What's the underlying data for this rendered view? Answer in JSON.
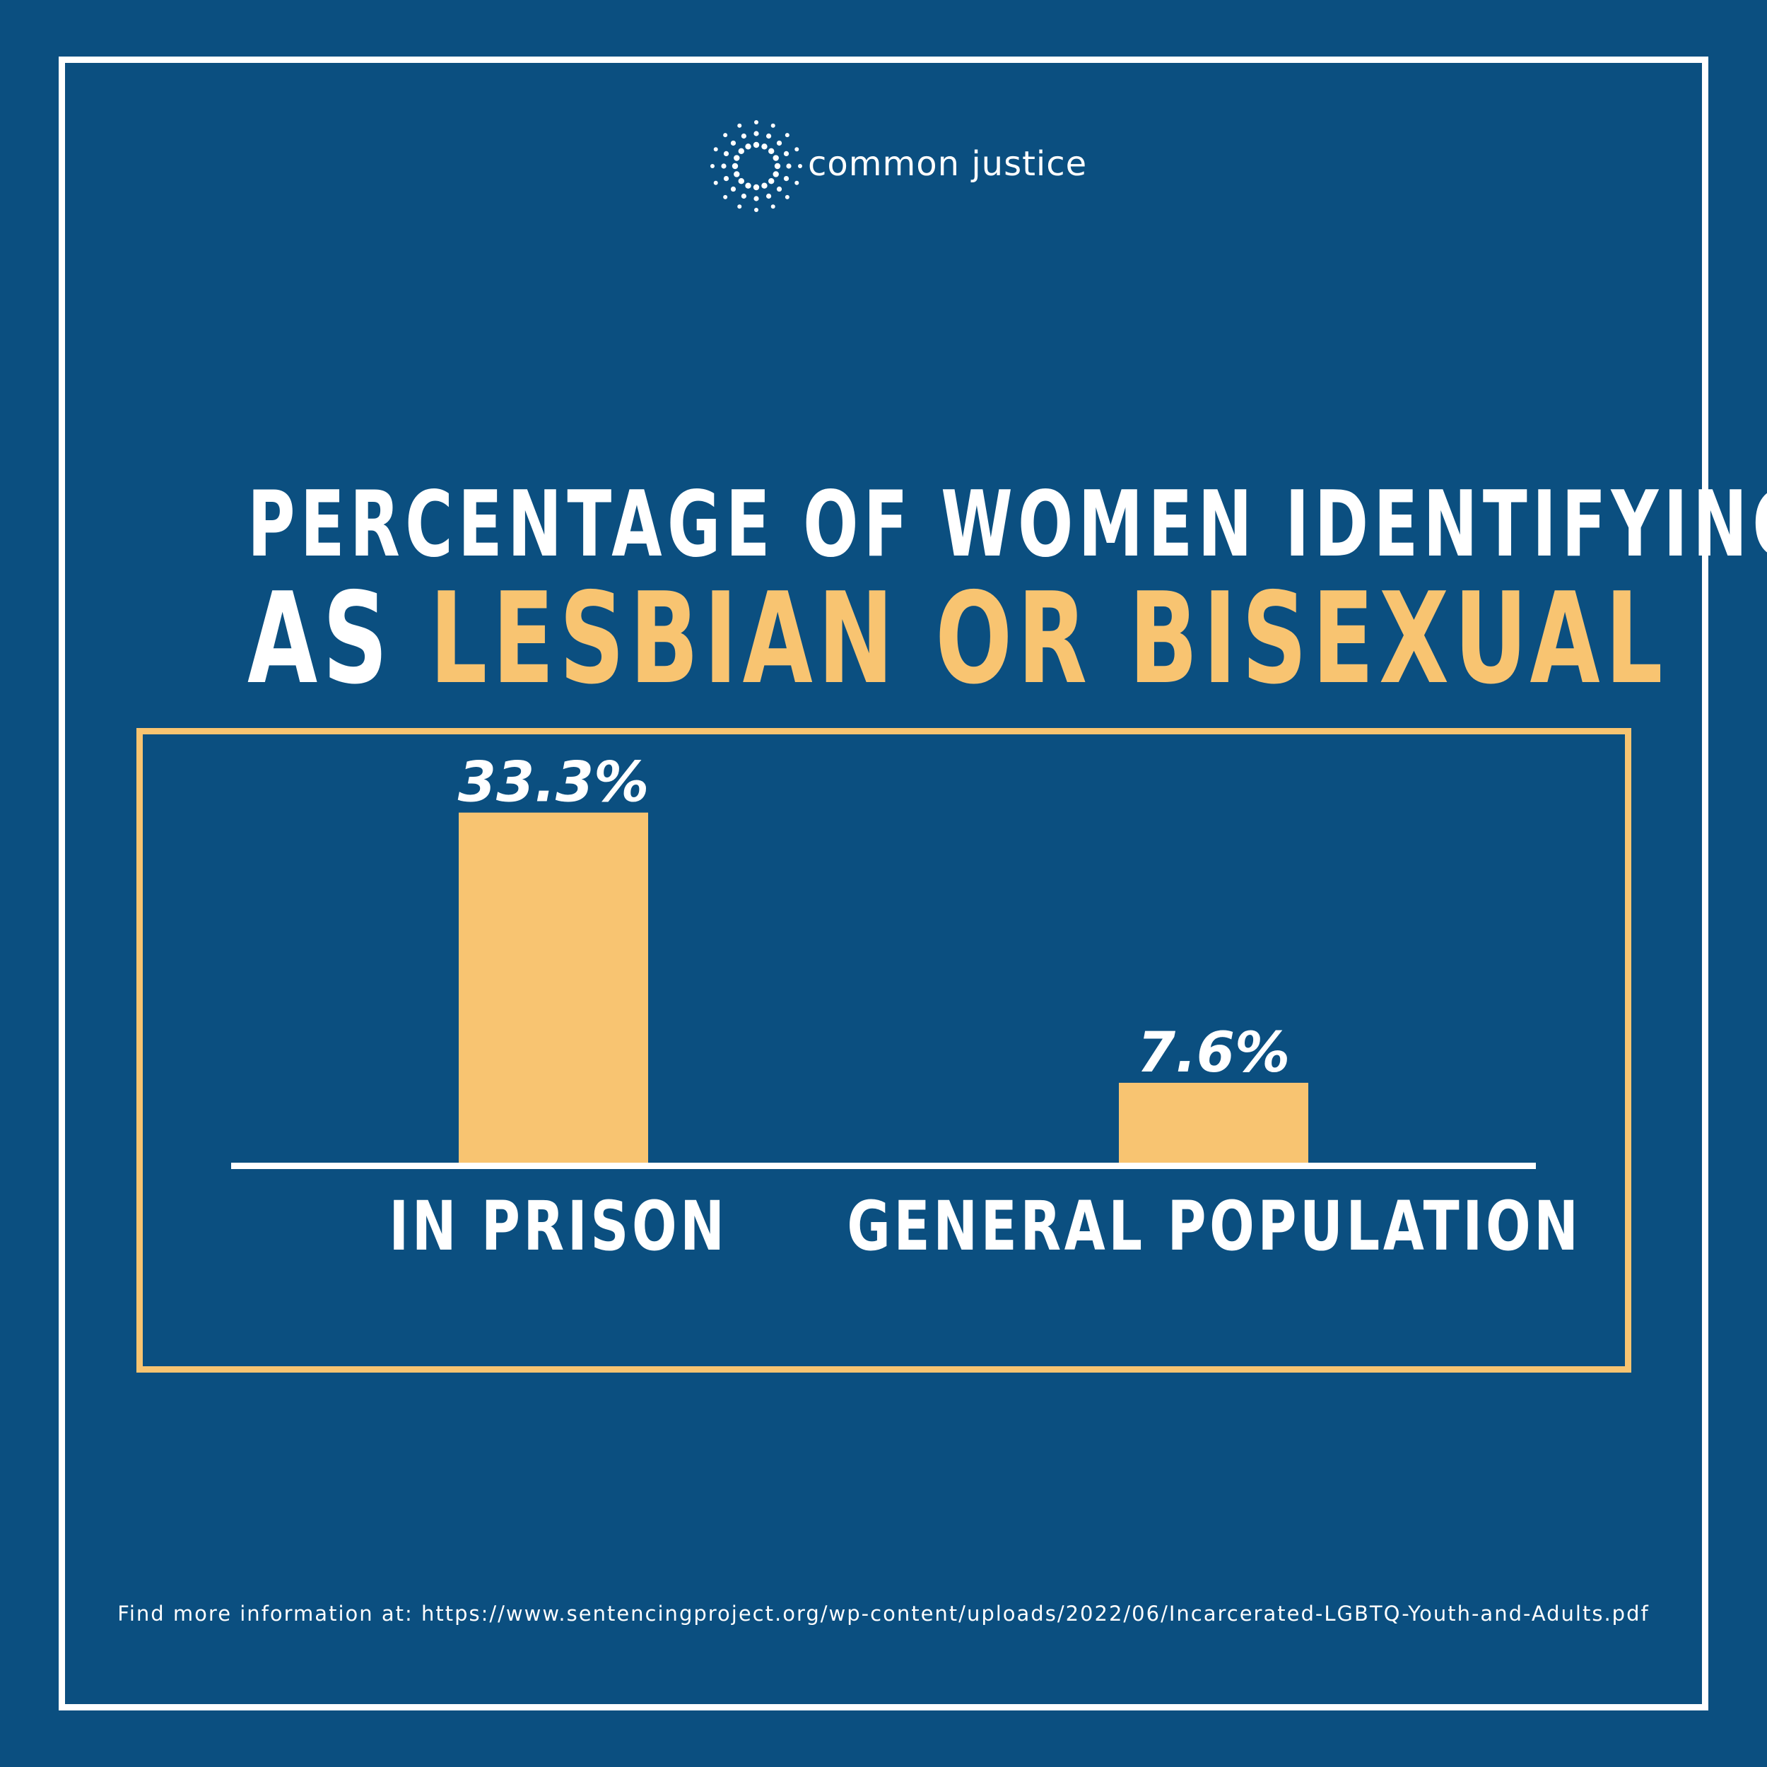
{
  "brand": {
    "name": "common justice",
    "logo_icon": "starburst-dots-icon"
  },
  "title": {
    "line1": "PERCENTAGE OF WOMEN IDENTIFYING",
    "line2_prefix": "AS ",
    "line2_highlight": "LESBIAN OR BISEXUAL"
  },
  "colors": {
    "background": "#0b4f80",
    "accent": "#f8c471",
    "text": "#ffffff"
  },
  "chart_data": {
    "type": "bar",
    "categories": [
      "IN PRISON",
      "GENERAL POPULATION"
    ],
    "values": [
      33.3,
      7.6
    ],
    "data_labels": [
      "33.3%",
      "7.6%"
    ],
    "title": "PERCENTAGE OF WOMEN IDENTIFYING AS LESBIAN OR BISEXUAL",
    "xlabel": "",
    "ylabel": "",
    "ylim": [
      0,
      40
    ],
    "grid": false,
    "legend": "none"
  },
  "footer": {
    "source_text": "Find more information at: https://www.sentencingproject.org/wp-content/uploads/2022/06/Incarcerated-LGBTQ-Youth-and-Adults.pdf"
  }
}
